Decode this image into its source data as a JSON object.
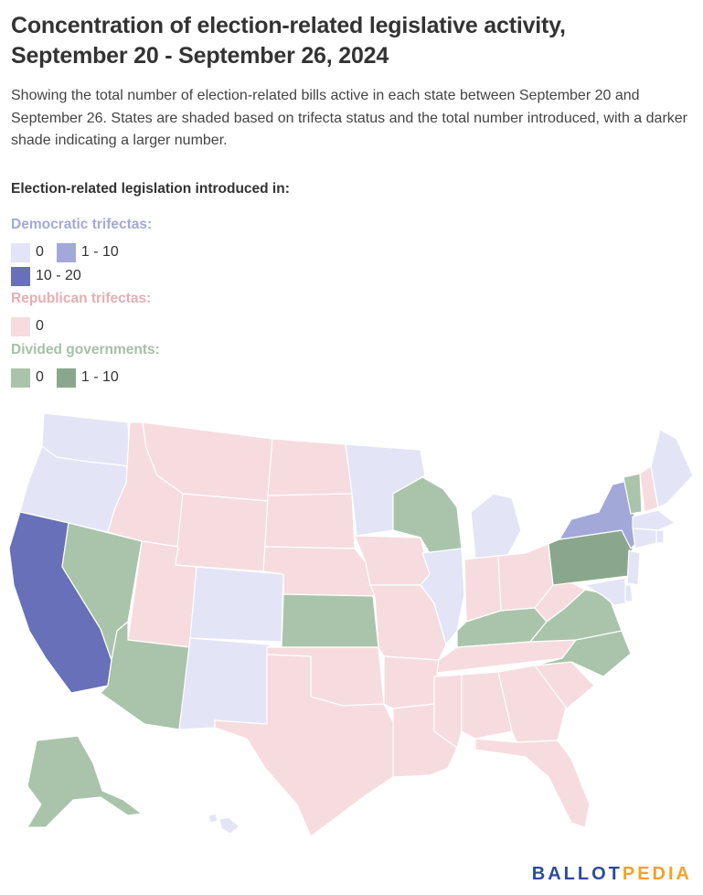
{
  "header": {
    "title": "Concentration of election-related legislative activity, September 20 - September 26, 2024",
    "subtitle": "Showing the total number of election-related bills active in each state between September 20 and September 26. States are shaded based on trifecta status and the total number introduced, with a darker shade indicating a larger number."
  },
  "legend": {
    "heading": "Election-related legislation introduced in:",
    "groups": [
      {
        "title": "Democratic trifectas:",
        "title_color": "#a2a9d8",
        "items": [
          {
            "label": "0",
            "color": "#e3e5f6"
          },
          {
            "label": "1 - 10",
            "color": "#a2a9d8"
          },
          {
            "label": "10 - 20",
            "color": "#6770b8"
          }
        ]
      },
      {
        "title": "Republican trifectas:",
        "title_color": "#e6aeb3",
        "items": [
          {
            "label": "0",
            "color": "#f6dcde"
          }
        ]
      },
      {
        "title": "Divided governments:",
        "title_color": "#a6c0a8",
        "items": [
          {
            "label": "0",
            "color": "#a9c4ab"
          },
          {
            "label": "1 - 10",
            "color": "#8aa78d"
          }
        ]
      }
    ]
  },
  "colors": {
    "dem_0": "#e3e5f6",
    "dem_1_10": "#a2a9d8",
    "dem_10_20": "#6770b8",
    "rep_0": "#f6dcde",
    "div_0": "#a9c4ab",
    "div_1_10": "#8aa78d"
  },
  "map_data": {
    "states": [
      {
        "name": "Washington",
        "category": "dem_0"
      },
      {
        "name": "Oregon",
        "category": "dem_0"
      },
      {
        "name": "California",
        "category": "dem_10_20"
      },
      {
        "name": "Nevada",
        "category": "div_0"
      },
      {
        "name": "Idaho",
        "category": "rep_0"
      },
      {
        "name": "Montana",
        "category": "rep_0"
      },
      {
        "name": "Wyoming",
        "category": "rep_0"
      },
      {
        "name": "Utah",
        "category": "rep_0"
      },
      {
        "name": "Arizona",
        "category": "div_0"
      },
      {
        "name": "Colorado",
        "category": "dem_0"
      },
      {
        "name": "New Mexico",
        "category": "dem_0"
      },
      {
        "name": "North Dakota",
        "category": "rep_0"
      },
      {
        "name": "South Dakota",
        "category": "rep_0"
      },
      {
        "name": "Nebraska",
        "category": "rep_0"
      },
      {
        "name": "Kansas",
        "category": "div_0"
      },
      {
        "name": "Oklahoma",
        "category": "rep_0"
      },
      {
        "name": "Texas",
        "category": "rep_0"
      },
      {
        "name": "Minnesota",
        "category": "dem_0"
      },
      {
        "name": "Iowa",
        "category": "rep_0"
      },
      {
        "name": "Missouri",
        "category": "rep_0"
      },
      {
        "name": "Arkansas",
        "category": "rep_0"
      },
      {
        "name": "Louisiana",
        "category": "rep_0"
      },
      {
        "name": "Wisconsin",
        "category": "div_0"
      },
      {
        "name": "Illinois",
        "category": "dem_0"
      },
      {
        "name": "Michigan",
        "category": "dem_0"
      },
      {
        "name": "Indiana",
        "category": "rep_0"
      },
      {
        "name": "Ohio",
        "category": "rep_0"
      },
      {
        "name": "Kentucky",
        "category": "div_0"
      },
      {
        "name": "Tennessee",
        "category": "rep_0"
      },
      {
        "name": "Mississippi",
        "category": "rep_0"
      },
      {
        "name": "Alabama",
        "category": "rep_0"
      },
      {
        "name": "Georgia",
        "category": "rep_0"
      },
      {
        "name": "Florida",
        "category": "rep_0"
      },
      {
        "name": "South Carolina",
        "category": "rep_0"
      },
      {
        "name": "North Carolina",
        "category": "div_0"
      },
      {
        "name": "Virginia",
        "category": "div_0"
      },
      {
        "name": "West Virginia",
        "category": "rep_0"
      },
      {
        "name": "Pennsylvania",
        "category": "div_1_10"
      },
      {
        "name": "New York",
        "category": "dem_1_10"
      },
      {
        "name": "Vermont",
        "category": "div_0"
      },
      {
        "name": "New Hampshire",
        "category": "rep_0"
      },
      {
        "name": "Maine",
        "category": "dem_0"
      },
      {
        "name": "Massachusetts",
        "category": "dem_0"
      },
      {
        "name": "Rhode Island",
        "category": "dem_0"
      },
      {
        "name": "Connecticut",
        "category": "dem_0"
      },
      {
        "name": "New Jersey",
        "category": "dem_0"
      },
      {
        "name": "Delaware",
        "category": "dem_0"
      },
      {
        "name": "Maryland",
        "category": "dem_0"
      },
      {
        "name": "Alaska",
        "category": "div_0"
      },
      {
        "name": "Hawaii",
        "category": "dem_0"
      }
    ]
  },
  "logo": {
    "part1": "BALLOT",
    "part2": "PEDIA"
  }
}
